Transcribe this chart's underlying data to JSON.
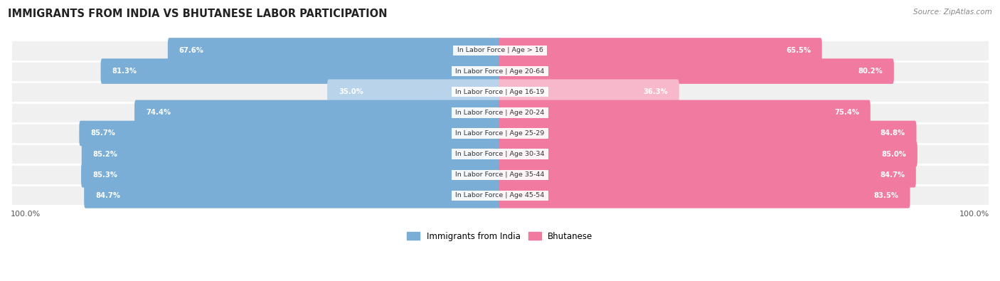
{
  "title": "IMMIGRANTS FROM INDIA VS BHUTANESE LABOR PARTICIPATION",
  "source": "Source: ZipAtlas.com",
  "categories": [
    "In Labor Force | Age > 16",
    "In Labor Force | Age 20-64",
    "In Labor Force | Age 16-19",
    "In Labor Force | Age 20-24",
    "In Labor Force | Age 25-29",
    "In Labor Force | Age 30-34",
    "In Labor Force | Age 35-44",
    "In Labor Force | Age 45-54"
  ],
  "india_values": [
    67.6,
    81.3,
    35.0,
    74.4,
    85.7,
    85.2,
    85.3,
    84.7
  ],
  "bhutan_values": [
    65.5,
    80.2,
    36.3,
    75.4,
    84.8,
    85.0,
    84.7,
    83.5
  ],
  "india_color": "#7aaed6",
  "india_color_light": "#b8d3ea",
  "bhutan_color": "#f07aa0",
  "bhutan_color_light": "#f7b8cc",
  "row_bg_color": "#f0f0f0",
  "max_value": 100.0,
  "legend_india": "Immigrants from India",
  "legend_bhutan": "Bhutanese",
  "bar_height": 0.62,
  "background_color": "#ffffff"
}
